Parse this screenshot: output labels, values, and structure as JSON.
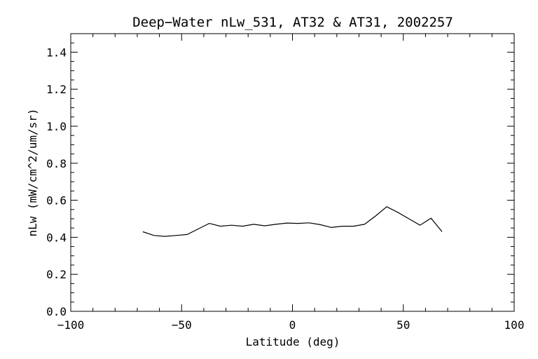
{
  "chart_data": {
    "type": "line",
    "title": "Deep−Water nLw_531, AT32 & AT31, 2002257",
    "xlabel": "Latitude (deg)",
    "ylabel": "nLw (mW/cm^2/um/sr)",
    "xlim": [
      -100,
      100
    ],
    "ylim": [
      0.0,
      1.5
    ],
    "xticks": [
      -100,
      -50,
      0,
      50,
      100
    ],
    "xtick_labels": [
      "−100",
      "−50",
      "0",
      "50",
      "100"
    ],
    "yticks": [
      0.0,
      0.2,
      0.4,
      0.6,
      0.8,
      1.0,
      1.2,
      1.4
    ],
    "ytick_labels": [
      "0.0",
      "0.2",
      "0.4",
      "0.6",
      "0.8",
      "1.0",
      "1.2",
      "1.4"
    ],
    "grid": false,
    "series": [
      {
        "color": "#000000",
        "x": [
          -67.5,
          -62.5,
          -57.5,
          -52.5,
          -47.5,
          -42.5,
          -37.5,
          -32.5,
          -27.5,
          -22.5,
          -17.5,
          -12.5,
          -7.5,
          -2.5,
          2.5,
          7.5,
          12.5,
          17.5,
          22.5,
          27.5,
          32.5,
          37.5,
          42.5,
          47.5,
          52.5,
          57.5,
          62.5,
          67.5
        ],
        "y": [
          0.43,
          0.41,
          0.405,
          0.41,
          0.415,
          0.445,
          0.475,
          0.46,
          0.465,
          0.46,
          0.47,
          0.462,
          0.47,
          0.477,
          0.475,
          0.478,
          0.468,
          0.453,
          0.46,
          0.46,
          0.47,
          0.515,
          0.565,
          0.535,
          0.5,
          0.465,
          0.503,
          0.43
        ]
      }
    ]
  }
}
